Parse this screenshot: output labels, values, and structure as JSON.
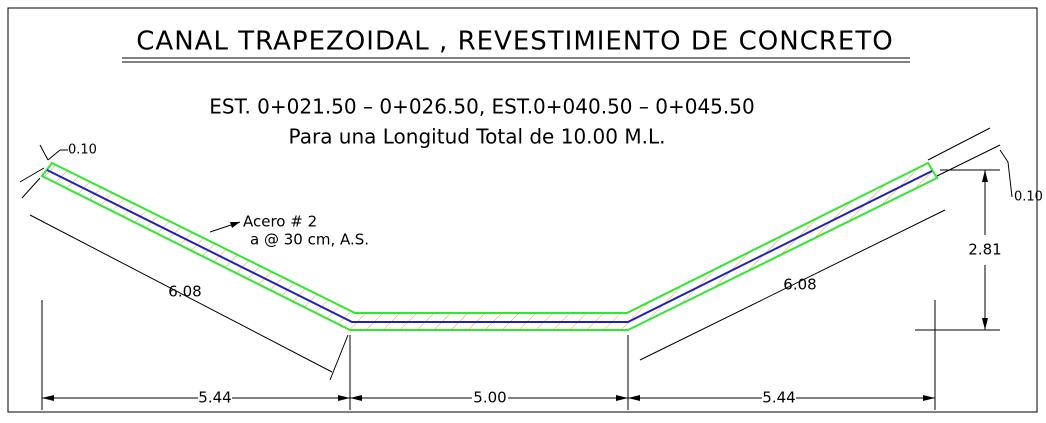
{
  "title": "CANAL TRAPEZOIDAL , REVESTIMIENTO DE CONCRETO",
  "subtitle": [
    "EST. 0+021.50 – 0+026.50, EST.0+040.50 – 0+045.50",
    "Para una Longitud Total de 10.00 M.L."
  ],
  "annotations": {
    "thickness_left": "0.10",
    "thickness_right": "0.10",
    "steel": [
      "Acero # 2",
      "a @ 30 cm, A.S."
    ],
    "slope_left": "6.08",
    "slope_right": "6.08",
    "height": "2.81",
    "width_left": "5.44",
    "width_bottom": "5.00",
    "width_right": "5.44"
  }
}
